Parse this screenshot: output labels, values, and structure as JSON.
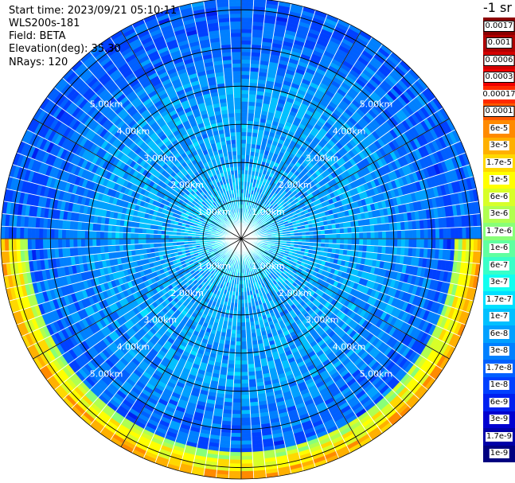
{
  "header": {
    "start_time": "Start time: 2023/09/21 05:10:11",
    "instrument": "WLS200s-181",
    "field": "Field: BETA",
    "elevation": "Elevation(deg): 35.30",
    "nrays": "NRays: 120"
  },
  "colorbar": {
    "title": "-1 sr",
    "entries": [
      {
        "label": "0.0017",
        "color": "#8b0000",
        "boxed": true
      },
      {
        "label": "0.001",
        "color": "#b00000",
        "boxed": true
      },
      {
        "label": "0.0006",
        "color": "#d40000",
        "boxed": true
      },
      {
        "label": "0.0003",
        "color": "#f00000",
        "boxed": true
      },
      {
        "label": "0.00017",
        "color": "#ff2a00",
        "boxed": false
      },
      {
        "label": "0.0001",
        "color": "#ff5a00",
        "boxed": true
      },
      {
        "label": "6e-5",
        "color": "#ff8a00",
        "boxed": false
      },
      {
        "label": "3e-5",
        "color": "#ffb000",
        "boxed": false
      },
      {
        "label": "1.7e-5",
        "color": "#ffd800",
        "boxed": false
      },
      {
        "label": "1e-5",
        "color": "#ffff00",
        "boxed": false
      },
      {
        "label": "6e-6",
        "color": "#d8ff28",
        "boxed": false
      },
      {
        "label": "3e-6",
        "color": "#b0ff50",
        "boxed": false
      },
      {
        "label": "1.7e-6",
        "color": "#88ff78",
        "boxed": false
      },
      {
        "label": "1e-6",
        "color": "#60ffa0",
        "boxed": false
      },
      {
        "label": "6e-7",
        "color": "#38ffc8",
        "boxed": false
      },
      {
        "label": "3e-7",
        "color": "#10fff0",
        "boxed": false
      },
      {
        "label": "1.7e-7",
        "color": "#00e0ff",
        "boxed": false
      },
      {
        "label": "1e-7",
        "color": "#00c0ff",
        "boxed": false
      },
      {
        "label": "6e-8",
        "color": "#00a0ff",
        "boxed": false
      },
      {
        "label": "3e-8",
        "color": "#0080ff",
        "boxed": false
      },
      {
        "label": "1.7e-8",
        "color": "#0060ff",
        "boxed": false
      },
      {
        "label": "1e-8",
        "color": "#0040ff",
        "boxed": false
      },
      {
        "label": "6e-9",
        "color": "#0020f0",
        "boxed": false
      },
      {
        "label": "3e-9",
        "color": "#0000d0",
        "boxed": false
      },
      {
        "label": "1.7e-9",
        "color": "#0000a8",
        "boxed": false
      },
      {
        "label": "1e-9",
        "color": "#000080",
        "boxed": false
      }
    ]
  },
  "chart_data": {
    "type": "heatmap",
    "projection": "polar",
    "range_rings_km": [
      1,
      2,
      3,
      4,
      5,
      6
    ],
    "range_labels": [
      "1.00km",
      "2.00km",
      "3.00km",
      "4.00km",
      "5.00km"
    ],
    "label_bearings_deg": [
      -135,
      -45,
      135,
      45
    ],
    "radial_lines_deg": [
      0,
      30,
      60,
      90,
      120,
      150,
      180,
      210,
      240,
      270,
      300,
      330
    ],
    "max_range_km": 6.3,
    "rays": 120,
    "gates_per_km": 10,
    "colormap_classes": 26,
    "profile_class_by_km": [
      {
        "km": 0.0,
        "class": 15
      },
      {
        "km": 1.0,
        "class": 17
      },
      {
        "km": 2.0,
        "class": 18
      },
      {
        "km": 3.5,
        "class": 18
      },
      {
        "km": 4.5,
        "class": 19
      },
      {
        "km": 5.5,
        "class": 20
      },
      {
        "km": 6.3,
        "class": 20
      }
    ],
    "edge_band_sectors_deg": [
      [
        90,
        270
      ]
    ],
    "edge_band_range_km": [
      5.6,
      6.3
    ],
    "edge_band_classes": [
      11,
      9,
      7
    ],
    "colors": {
      "ring": "#000000",
      "ray_separator": "#ffffff",
      "range_label": "#ffffff"
    }
  }
}
